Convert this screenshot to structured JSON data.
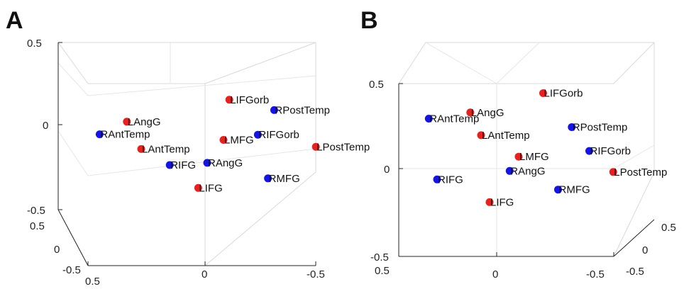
{
  "colors": {
    "red": "#e8211f",
    "blue": "#1414e6"
  },
  "chart_data": [
    {
      "type": "scatter",
      "title": "A",
      "axis_ticks": {
        "z": [
          "0.5",
          "0",
          "-0.5"
        ],
        "left_depth": [
          "0.5",
          "0",
          "-0.5"
        ],
        "bottom": [
          "0.5",
          "0",
          "-0.5"
        ]
      },
      "points": [
        {
          "name": "RAntTemp",
          "group": "blue",
          "x": -0.38,
          "y": 0.12,
          "z": -0.03
        },
        {
          "name": "LAngG",
          "group": "red",
          "x": -0.28,
          "y": 0.1,
          "z": 0.04
        },
        {
          "name": "LIFGorb",
          "group": "red",
          "x": 0.1,
          "y": 0.05,
          "z": 0.16
        },
        {
          "name": "RPostTemp",
          "group": "blue",
          "x": 0.27,
          "y": 0.05,
          "z": 0.1
        },
        {
          "name": "RIFGorb",
          "group": "blue",
          "x": 0.2,
          "y": 0.0,
          "z": -0.05
        },
        {
          "name": "LMFG",
          "group": "red",
          "x": 0.07,
          "y": 0.0,
          "z": -0.08
        },
        {
          "name": "LAntTemp",
          "group": "red",
          "x": -0.25,
          "y": -0.05,
          "z": -0.14
        },
        {
          "name": "LPostTemp",
          "group": "red",
          "x": 0.42,
          "y": 0.0,
          "z": -0.12
        },
        {
          "name": "RIFG",
          "group": "blue",
          "x": -0.15,
          "y": -0.1,
          "z": -0.24
        },
        {
          "name": "RAngG",
          "group": "blue",
          "x": 0.0,
          "y": -0.05,
          "z": -0.22
        },
        {
          "name": "RMFG",
          "group": "blue",
          "x": 0.23,
          "y": -0.05,
          "z": -0.31
        },
        {
          "name": "LIFG",
          "group": "red",
          "x": -0.05,
          "y": -0.15,
          "z": -0.38
        }
      ]
    },
    {
      "type": "scatter",
      "title": "B",
      "axis_ticks": {
        "z": [
          "0.5",
          "0",
          "-0.5"
        ],
        "right_depth": [
          "0.5",
          "0",
          "-0.5"
        ],
        "bottom": [
          "0.5",
          "0",
          "-0.5"
        ]
      },
      "points": [
        {
          "name": "LIFGorb",
          "group": "red",
          "x": 0.22,
          "y": 0.05,
          "z": 0.45
        },
        {
          "name": "LAngG",
          "group": "red",
          "x": -0.12,
          "y": 0.0,
          "z": 0.33
        },
        {
          "name": "RAntTemp",
          "group": "blue",
          "x": -0.3,
          "y": 0.05,
          "z": 0.3
        },
        {
          "name": "RPostTemp",
          "group": "blue",
          "x": 0.35,
          "y": 0.05,
          "z": 0.25
        },
        {
          "name": "LAntTemp",
          "group": "red",
          "x": -0.08,
          "y": -0.05,
          "z": 0.19
        },
        {
          "name": "RIFGorb",
          "group": "blue",
          "x": 0.43,
          "y": 0.05,
          "z": 0.11
        },
        {
          "name": "LMFG",
          "group": "red",
          "x": 0.1,
          "y": 0.0,
          "z": 0.07
        },
        {
          "name": "LPostTemp",
          "group": "red",
          "x": 0.53,
          "y": 0.0,
          "z": -0.02
        },
        {
          "name": "RAngG",
          "group": "blue",
          "x": 0.05,
          "y": -0.05,
          "z": -0.02
        },
        {
          "name": "RIFG",
          "group": "blue",
          "x": -0.28,
          "y": -0.05,
          "z": -0.07
        },
        {
          "name": "RMFG",
          "group": "blue",
          "x": 0.27,
          "y": -0.05,
          "z": -0.13
        },
        {
          "name": "LIFG",
          "group": "red",
          "x": -0.05,
          "y": -0.1,
          "z": -0.21
        }
      ]
    }
  ]
}
